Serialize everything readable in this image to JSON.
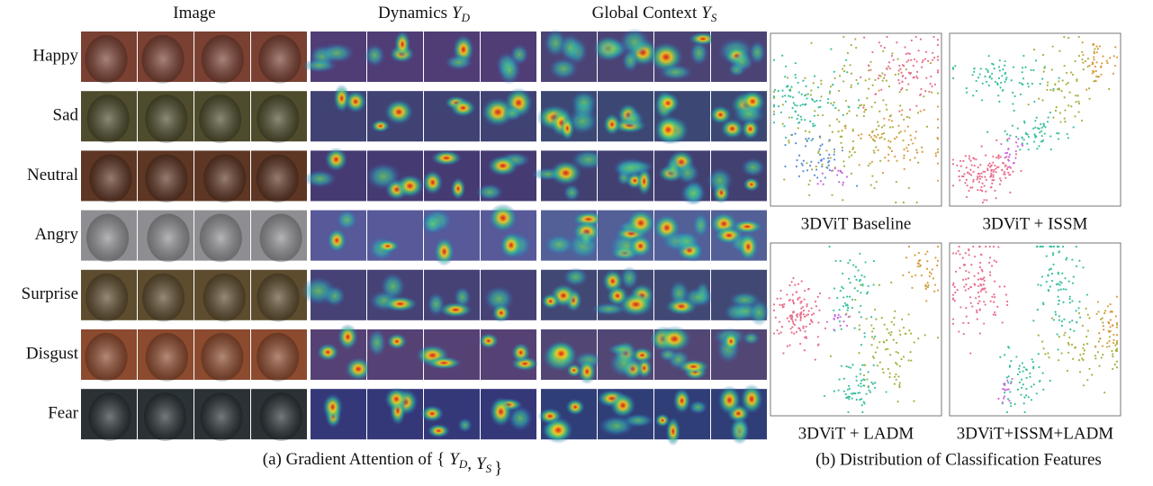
{
  "panel_a": {
    "headers": [
      {
        "text": "Image"
      },
      {
        "text": "Dynamics",
        "symbol": "Y",
        "subscript": "D"
      },
      {
        "text": "Global Context",
        "symbol": "Y",
        "subscript": "S"
      }
    ],
    "rows": [
      "Happy",
      "Sad",
      "Neutral",
      "Angry",
      "Surprise",
      "Disgust",
      "Fear"
    ],
    "caption": {
      "prefix": "(a) Gradient Attention of",
      "open": "{",
      "terms": [
        {
          "symbol": "Y",
          "subscript": "D"
        },
        {
          "symbol": "Y",
          "subscript": "S"
        }
      ],
      "separator": ",",
      "close": "}"
    }
  },
  "panel_b": {
    "plots": [
      "3DViT Baseline",
      "3DViT + ISSM",
      "3DViT + LADM",
      "3DViT+ISSM+LADM"
    ],
    "caption": "(b) Distribution of Classification Features"
  }
}
